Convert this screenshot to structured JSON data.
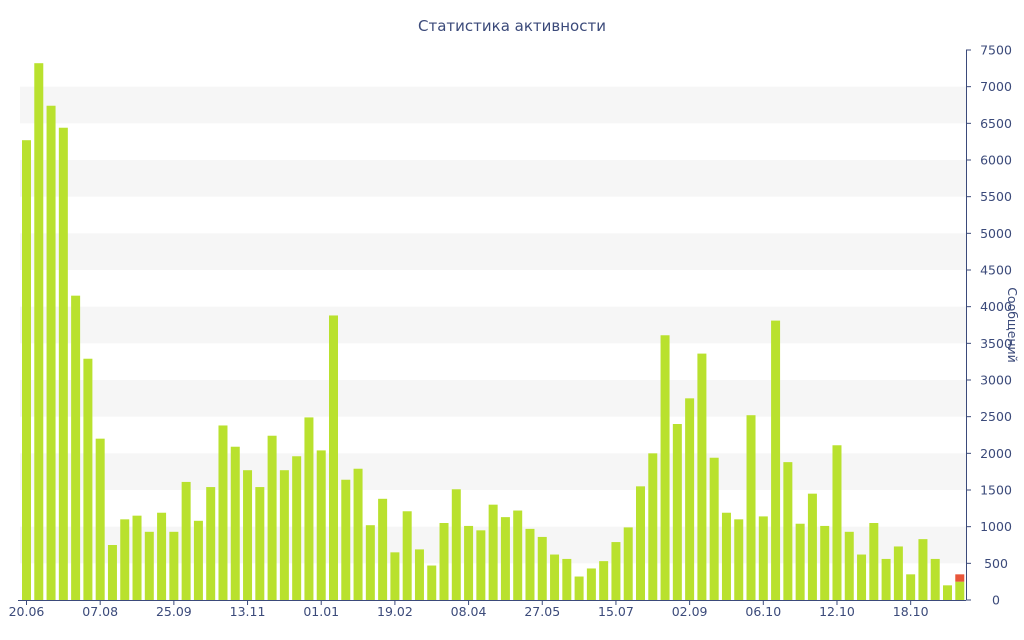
{
  "chart_data": {
    "type": "bar",
    "title": "Статистика активности",
    "ylabel": "Сообщений",
    "xlabel": "",
    "ylim": [
      0,
      7500
    ],
    "y_ticks": [
      0,
      500,
      1000,
      1500,
      2000,
      2500,
      3000,
      3500,
      4000,
      4500,
      5000,
      5500,
      6000,
      6500,
      7000,
      7500
    ],
    "y_axis_position": "right",
    "grid": "alternating horizontal bands",
    "x_tick_labels": [
      {
        "index": 0,
        "label": "20.06"
      },
      {
        "index": 6,
        "label": "07.08"
      },
      {
        "index": 12,
        "label": "25.09"
      },
      {
        "index": 18,
        "label": "13.11"
      },
      {
        "index": 24,
        "label": "01.01"
      },
      {
        "index": 30,
        "label": "19.02"
      },
      {
        "index": 36,
        "label": "08.04"
      },
      {
        "index": 42,
        "label": "27.05"
      },
      {
        "index": 48,
        "label": "15.07"
      },
      {
        "index": 54,
        "label": "02.09"
      },
      {
        "index": 60,
        "label": "06.10"
      },
      {
        "index": 66,
        "label": "12.10"
      },
      {
        "index": 72,
        "label": "18.10"
      }
    ],
    "series": [
      {
        "name": "",
        "color": "#b9e12e",
        "values": [
          6270,
          7320,
          6740,
          6440,
          4150,
          3290,
          2200,
          750,
          1100,
          1150,
          930,
          1190,
          930,
          1610,
          1080,
          1540,
          2380,
          2090,
          1770,
          1540,
          2240,
          1770,
          1960,
          2490,
          2040,
          3880,
          1640,
          1790,
          1020,
          1380,
          650,
          1210,
          690,
          470,
          1050,
          1510,
          1010,
          950,
          1300,
          1130,
          1220,
          970,
          860,
          620,
          560,
          320,
          430,
          530,
          790,
          990,
          1550,
          2000,
          3610,
          2400,
          2750,
          3360,
          1940,
          1190,
          1100,
          2520,
          1140,
          3810,
          1880,
          1040,
          1450,
          1010,
          2110,
          930,
          620,
          1050,
          560,
          730,
          350,
          830,
          560,
          200,
          250
        ]
      },
      {
        "name": "",
        "color": "#e8563a",
        "values": [
          0,
          0,
          0,
          0,
          0,
          0,
          0,
          0,
          0,
          0,
          0,
          0,
          0,
          0,
          0,
          0,
          0,
          0,
          0,
          0,
          0,
          0,
          0,
          0,
          0,
          0,
          0,
          0,
          0,
          0,
          0,
          0,
          0,
          0,
          0,
          0,
          0,
          0,
          0,
          0,
          0,
          0,
          0,
          0,
          0,
          0,
          0,
          0,
          0,
          0,
          0,
          0,
          0,
          0,
          0,
          0,
          0,
          0,
          0,
          0,
          0,
          0,
          0,
          0,
          0,
          0,
          0,
          0,
          0,
          0,
          0,
          0,
          0,
          0,
          0,
          0,
          100
        ]
      }
    ]
  }
}
